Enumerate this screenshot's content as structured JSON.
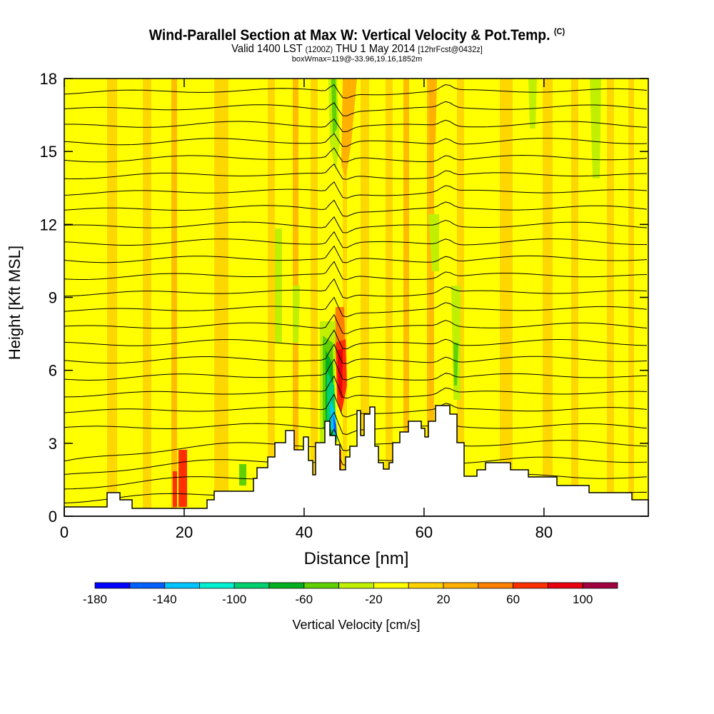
{
  "chart_data": {
    "type": "heatmap",
    "title": "Wind-Parallel Section at Max W: Vertical Velocity & Pot.Temp.",
    "title_mark": "(C)",
    "subtitle_valid": "Valid 1400 LST",
    "subtitle_utc": "(1200Z)",
    "subtitle_date": "THU 1 May 2014",
    "subtitle_fcst": "[12hrFcst@0432z]",
    "box_info": "boxWmax=119@-33.96,19.16,1852m",
    "xlabel": "Distance [nm]",
    "ylabel": "Height [Kft MSL]",
    "xlim": [
      0,
      97.4
    ],
    "ylim": [
      0,
      18
    ],
    "xticks": [
      0,
      20,
      40,
      60,
      80
    ],
    "yticks": [
      0,
      3,
      6,
      9,
      12,
      15,
      18
    ],
    "colorbar": {
      "label": "Vertical Velocity [cm/s]",
      "levels": [
        -180,
        -160,
        -140,
        -120,
        -100,
        -80,
        -60,
        -40,
        -20,
        0,
        20,
        40,
        60,
        80,
        100,
        120
      ],
      "tick_labels": [
        "-180",
        "-140",
        "-100",
        "-60",
        "-20",
        "20",
        "60",
        "100"
      ],
      "colors": [
        "#0000ff",
        "#0060ff",
        "#00c4ff",
        "#00f0d0",
        "#00d070",
        "#00b020",
        "#60d000",
        "#c0f000",
        "#ffff00",
        "#ffd000",
        "#ffb000",
        "#ff8000",
        "#ff3000",
        "#e80010",
        "#a00040"
      ]
    },
    "features": {
      "max_updraft_cm_s": 119,
      "max_updraft_location_nm": 46,
      "max_downdraft_cm_s": -180,
      "contours": "potential temperature isentropes"
    }
  }
}
